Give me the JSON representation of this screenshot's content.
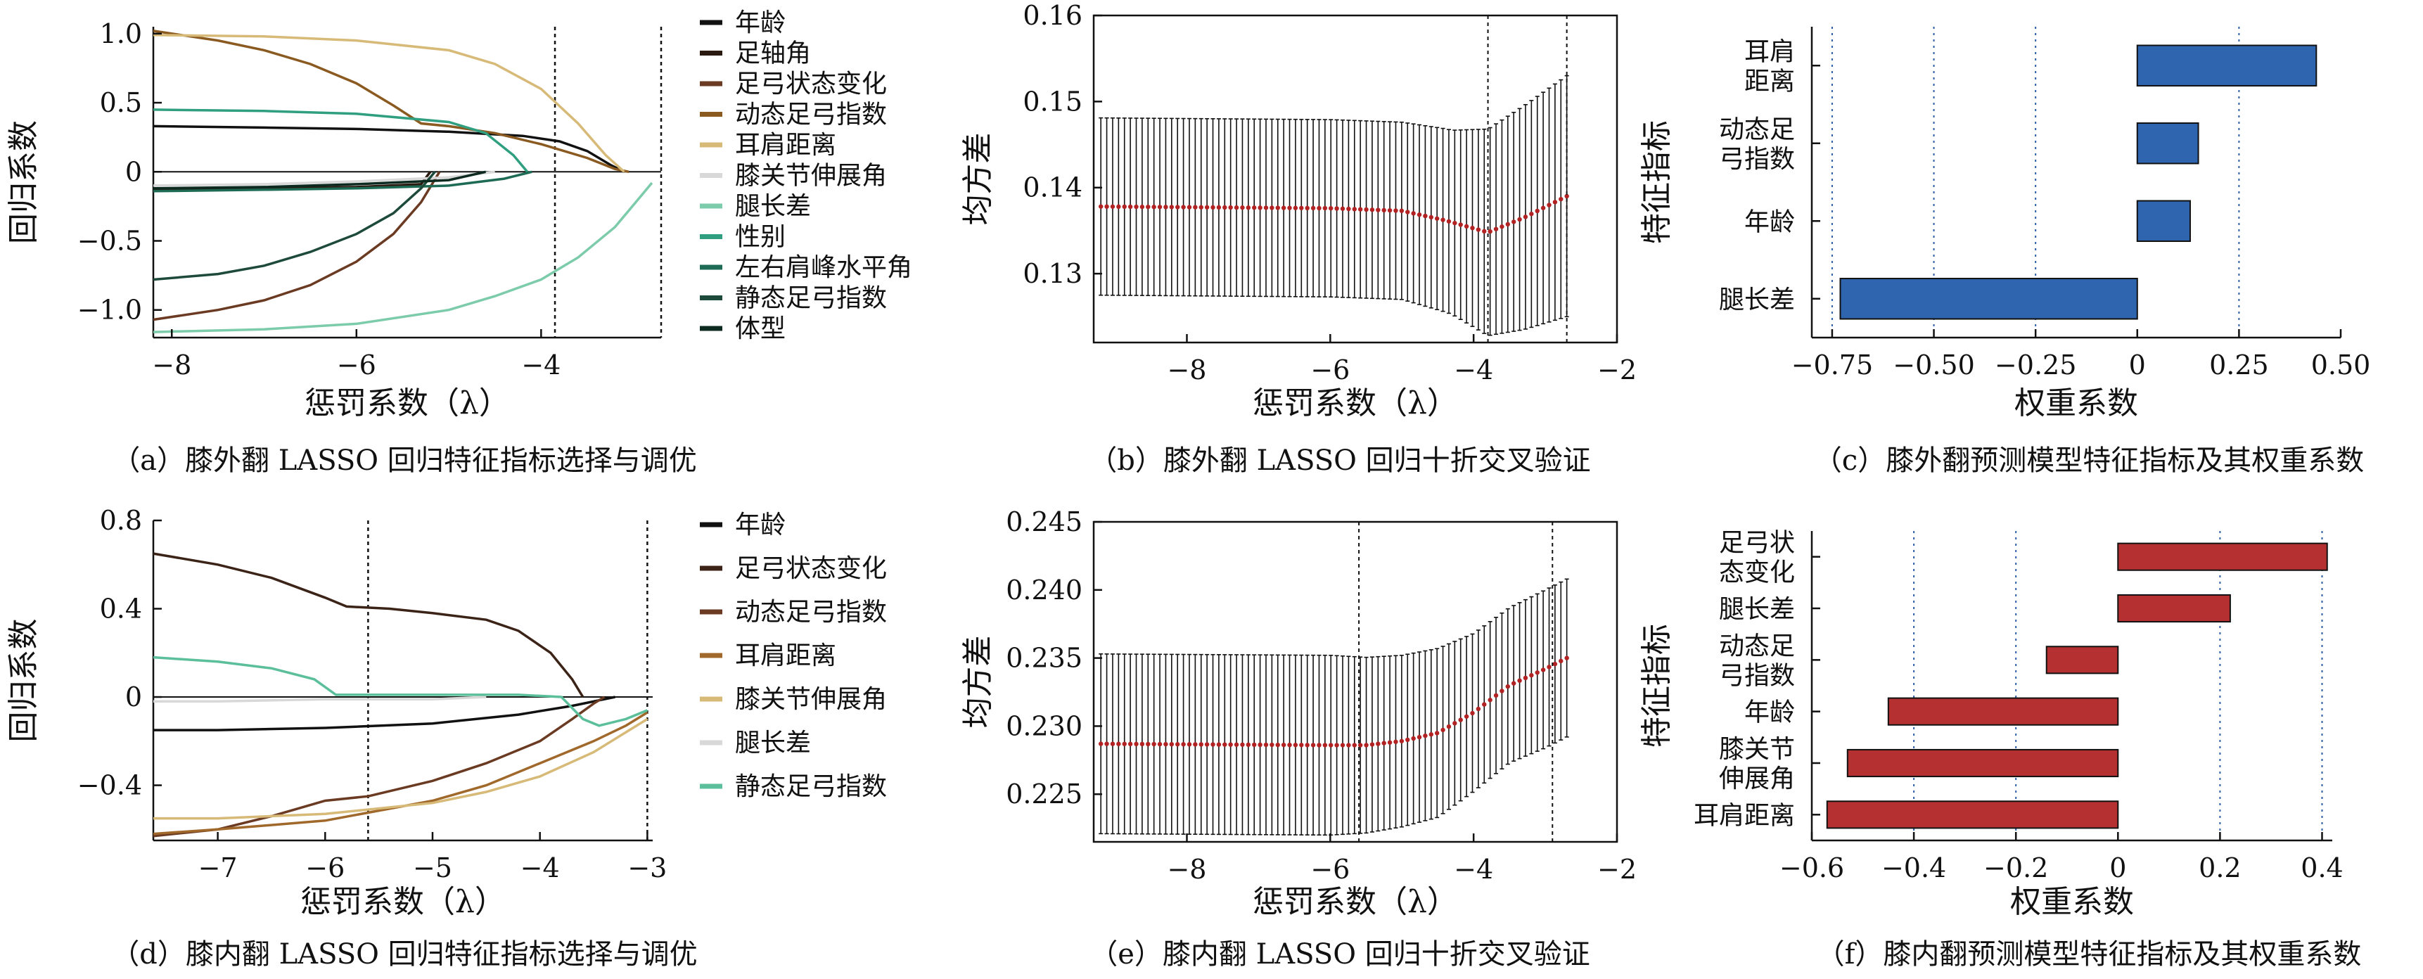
{
  "chart_data": [
    {
      "id": "a",
      "type": "line",
      "caption": "（a）膝外翻 LASSO 回归特征指标选择与调优",
      "xlabel": "惩罚系数（λ）",
      "ylabel": "回归系数",
      "xlim": [
        -8.2,
        -2.7
      ],
      "ylim": [
        -1.2,
        1.05
      ],
      "xticks": [
        -8,
        -6,
        -4
      ],
      "xtick_labels": [
        "−8",
        "−6",
        "−4"
      ],
      "yticks": [
        1.0,
        0.5,
        0,
        -0.5,
        -1.0
      ],
      "ytick_labels": [
        "1.0",
        "0.5",
        "0",
        "−0.5",
        "−1.0"
      ],
      "vlines": [
        -3.85,
        -2.7
      ],
      "series": [
        {
          "name": "年龄",
          "color": "#111111",
          "points": [
            [
              -8.2,
              0.33
            ],
            [
              -7,
              0.32
            ],
            [
              -6,
              0.31
            ],
            [
              -5,
              0.29
            ],
            [
              -4.2,
              0.26
            ],
            [
              -3.8,
              0.22
            ],
            [
              -3.5,
              0.15
            ],
            [
              -3.25,
              0.05
            ],
            [
              -3.1,
              0
            ]
          ]
        },
        {
          "name": "足轴角",
          "color": "#2b1a10",
          "points": [
            [
              -8.2,
              -0.13
            ],
            [
              -7,
              -0.12
            ],
            [
              -6,
              -0.11
            ],
            [
              -5.3,
              -0.09
            ],
            [
              -5.2,
              0
            ]
          ]
        },
        {
          "name": "足弓状态变化",
          "color": "#6b3a22",
          "points": [
            [
              -8.2,
              -1.07
            ],
            [
              -7.5,
              -1.0
            ],
            [
              -7,
              -0.93
            ],
            [
              -6.5,
              -0.82
            ],
            [
              -6,
              -0.65
            ],
            [
              -5.6,
              -0.45
            ],
            [
              -5.3,
              -0.22
            ],
            [
              -5.1,
              0
            ]
          ]
        },
        {
          "name": "动态足弓指数",
          "color": "#8a5a20",
          "points": [
            [
              -8.2,
              1.02
            ],
            [
              -7.5,
              0.95
            ],
            [
              -7,
              0.88
            ],
            [
              -6.5,
              0.78
            ],
            [
              -6,
              0.64
            ],
            [
              -5.6,
              0.48
            ],
            [
              -5.3,
              0.35
            ],
            [
              -5,
              0.33
            ],
            [
              -4.5,
              0.28
            ],
            [
              -4,
              0.2
            ],
            [
              -3.5,
              0.1
            ],
            [
              -3.2,
              0.02
            ],
            [
              -3.05,
              0
            ]
          ]
        },
        {
          "name": "耳肩距离",
          "color": "#d7ba78",
          "points": [
            [
              -8.2,
              0.99
            ],
            [
              -7,
              0.98
            ],
            [
              -6,
              0.95
            ],
            [
              -5,
              0.88
            ],
            [
              -4.5,
              0.78
            ],
            [
              -4,
              0.6
            ],
            [
              -3.6,
              0.35
            ],
            [
              -3.3,
              0.12
            ],
            [
              -3.1,
              0
            ]
          ]
        },
        {
          "name": "膝关节伸展角",
          "color": "#d8d8d8",
          "points": [
            [
              -8.2,
              -0.1
            ],
            [
              -7,
              -0.09
            ],
            [
              -6,
              -0.07
            ],
            [
              -5,
              -0.04
            ],
            [
              -4.5,
              0
            ]
          ]
        },
        {
          "name": "腿长差",
          "color": "#7ccbaa",
          "points": [
            [
              -8.2,
              -1.16
            ],
            [
              -7,
              -1.14
            ],
            [
              -6,
              -1.1
            ],
            [
              -5,
              -1.0
            ],
            [
              -4.5,
              -0.9
            ],
            [
              -4,
              -0.78
            ],
            [
              -3.6,
              -0.62
            ],
            [
              -3.2,
              -0.4
            ],
            [
              -2.95,
              -0.2
            ],
            [
              -2.8,
              -0.08
            ]
          ]
        },
        {
          "name": "性别",
          "color": "#2f9f80",
          "points": [
            [
              -8.2,
              0.45
            ],
            [
              -7,
              0.44
            ],
            [
              -6,
              0.42
            ],
            [
              -5,
              0.36
            ],
            [
              -4.6,
              0.28
            ],
            [
              -4.3,
              0.12
            ],
            [
              -4.15,
              0
            ]
          ]
        },
        {
          "name": "左右肩峰水平角",
          "color": "#1e6b55",
          "points": [
            [
              -8.2,
              -0.14
            ],
            [
              -7,
              -0.13
            ],
            [
              -6,
              -0.12
            ],
            [
              -5,
              -0.1
            ],
            [
              -4.4,
              -0.05
            ],
            [
              -4.1,
              0
            ]
          ]
        },
        {
          "name": "静态足弓指数",
          "color": "#1d4a3a",
          "points": [
            [
              -8.2,
              -0.78
            ],
            [
              -7.5,
              -0.74
            ],
            [
              -7,
              -0.68
            ],
            [
              -6.5,
              -0.58
            ],
            [
              -6,
              -0.45
            ],
            [
              -5.6,
              -0.3
            ],
            [
              -5.3,
              -0.12
            ],
            [
              -5.15,
              0
            ]
          ]
        },
        {
          "name": "体型",
          "color": "#0d2a20",
          "points": [
            [
              -8.2,
              -0.12
            ],
            [
              -7,
              -0.11
            ],
            [
              -6,
              -0.09
            ],
            [
              -5,
              -0.06
            ],
            [
              -4.6,
              0
            ]
          ]
        }
      ]
    },
    {
      "id": "b",
      "type": "scatter",
      "caption": "（b）膝外翻 LASSO 回归十折交叉验证",
      "xlabel": "惩罚系数（λ）",
      "ylabel": "均方差",
      "xlim": [
        -9.3,
        -2.0
      ],
      "ylim": [
        0.122,
        0.16
      ],
      "xticks": [
        -8,
        -6,
        -4,
        -2
      ],
      "xtick_labels": [
        "−8",
        "−6",
        "−4",
        "−2"
      ],
      "yticks": [
        0.13,
        0.14,
        0.15,
        0.16
      ],
      "ytick_labels": [
        "0.13",
        "0.14",
        "0.15",
        "0.16"
      ],
      "vlines": [
        -3.8,
        -2.7
      ],
      "lambda_range": [
        -9.2,
        -2.7
      ],
      "n_points": 80,
      "mean_curve": [
        [
          -9.2,
          0.1378
        ],
        [
          -6,
          0.1376
        ],
        [
          -5,
          0.1373
        ],
        [
          -4.4,
          0.1362
        ],
        [
          -3.8,
          0.1348
        ],
        [
          -3.3,
          0.1365
        ],
        [
          -2.7,
          0.139
        ]
      ],
      "halfwidth_curve": [
        [
          -9.2,
          0.0103
        ],
        [
          -6,
          0.0103
        ],
        [
          -5,
          0.0103
        ],
        [
          -4.3,
          0.0107
        ],
        [
          -3.8,
          0.012
        ],
        [
          -3.3,
          0.013
        ],
        [
          -2.7,
          0.014
        ]
      ],
      "point_color": "#b22222"
    },
    {
      "id": "c",
      "type": "bar",
      "orientation": "horizontal",
      "caption": "（c）膝外翻预测模型特征指标及其权重系数",
      "xlabel": "权重系数",
      "ylabel": "特征指标",
      "xlim": [
        -0.8,
        0.5
      ],
      "xticks": [
        -0.75,
        -0.5,
        -0.25,
        0,
        0.25,
        0.5
      ],
      "xtick_labels": [
        "−0.75",
        "−0.50",
        "−0.25",
        "0",
        "0.25",
        "0.50"
      ],
      "grid_x": [
        -0.75,
        -0.5,
        -0.25,
        0.25
      ],
      "categories": [
        [
          "耳肩",
          "距离"
        ],
        [
          "动态足",
          "弓指数"
        ],
        [
          "年龄"
        ],
        [
          "腿长差"
        ]
      ],
      "values": [
        0.44,
        0.15,
        0.13,
        -0.73
      ],
      "bar_color": "#2f64ae"
    },
    {
      "id": "d",
      "type": "line",
      "caption": "（d）膝内翻 LASSO 回归特征指标选择与调优",
      "xlabel": "惩罚系数（λ）",
      "ylabel": "回归系数",
      "xlim": [
        -7.6,
        -2.95
      ],
      "ylim": [
        -0.65,
        0.8
      ],
      "xticks": [
        -7,
        -6,
        -5,
        -4,
        -3
      ],
      "xtick_labels": [
        "−7",
        "−6",
        "−5",
        "−4",
        "−3"
      ],
      "yticks": [
        0.8,
        0.4,
        0,
        -0.4
      ],
      "ytick_labels": [
        "0.8",
        "0.4",
        "0",
        "−0.4"
      ],
      "vlines": [
        -5.6,
        -3.0
      ],
      "series": [
        {
          "name": "年龄",
          "color": "#111111",
          "points": [
            [
              -7.6,
              -0.15
            ],
            [
              -7,
              -0.15
            ],
            [
              -6,
              -0.14
            ],
            [
              -5,
              -0.12
            ],
            [
              -4.2,
              -0.08
            ],
            [
              -3.7,
              -0.04
            ],
            [
              -3.4,
              -0.01
            ],
            [
              -3.3,
              0
            ]
          ]
        },
        {
          "name": "足弓状态变化",
          "color": "#3b2417",
          "points": [
            [
              -7.6,
              0.65
            ],
            [
              -7,
              0.6
            ],
            [
              -6.5,
              0.54
            ],
            [
              -6,
              0.45
            ],
            [
              -5.8,
              0.41
            ],
            [
              -5.4,
              0.4
            ],
            [
              -5,
              0.38
            ],
            [
              -4.5,
              0.35
            ],
            [
              -4.2,
              0.3
            ],
            [
              -3.9,
              0.2
            ],
            [
              -3.7,
              0.08
            ],
            [
              -3.6,
              0
            ]
          ]
        },
        {
          "name": "动态足弓指数",
          "color": "#6b3a22",
          "points": [
            [
              -7.6,
              -0.63
            ],
            [
              -7,
              -0.6
            ],
            [
              -6.5,
              -0.54
            ],
            [
              -6,
              -0.47
            ],
            [
              -5.6,
              -0.45
            ],
            [
              -5,
              -0.38
            ],
            [
              -4.5,
              -0.3
            ],
            [
              -4,
              -0.2
            ],
            [
              -3.7,
              -0.1
            ],
            [
              -3.5,
              -0.03
            ],
            [
              -3.4,
              0
            ]
          ]
        },
        {
          "name": "耳肩距离",
          "color": "#a0682a",
          "points": [
            [
              -7.6,
              -0.62
            ],
            [
              -7,
              -0.6
            ],
            [
              -6,
              -0.56
            ],
            [
              -5,
              -0.47
            ],
            [
              -4.5,
              -0.4
            ],
            [
              -4,
              -0.3
            ],
            [
              -3.5,
              -0.2
            ],
            [
              -3.2,
              -0.13
            ],
            [
              -3.0,
              -0.07
            ]
          ]
        },
        {
          "name": "膝关节伸展角",
          "color": "#d7ba78",
          "points": [
            [
              -7.6,
              -0.55
            ],
            [
              -7,
              -0.55
            ],
            [
              -6,
              -0.53
            ],
            [
              -5,
              -0.48
            ],
            [
              -4.5,
              -0.43
            ],
            [
              -4,
              -0.36
            ],
            [
              -3.5,
              -0.25
            ],
            [
              -3.2,
              -0.16
            ],
            [
              -3.0,
              -0.1
            ]
          ]
        },
        {
          "name": "腿长差",
          "color": "#d8d8d8",
          "points": [
            [
              -7.6,
              -0.02
            ],
            [
              -7,
              -0.02
            ],
            [
              -6,
              -0.01
            ],
            [
              -5,
              -0.01
            ],
            [
              -4.5,
              0
            ]
          ]
        },
        {
          "name": "静态足弓指数",
          "color": "#5bbf9b",
          "points": [
            [
              -7.6,
              0.18
            ],
            [
              -7,
              0.16
            ],
            [
              -6.5,
              0.13
            ],
            [
              -6.1,
              0.08
            ],
            [
              -5.9,
              0.01
            ],
            [
              -5.5,
              0.01
            ],
            [
              -4.2,
              0.01
            ],
            [
              -3.8,
              0
            ],
            [
              -3.6,
              -0.1
            ],
            [
              -3.45,
              -0.13
            ],
            [
              -3.2,
              -0.1
            ],
            [
              -3.0,
              -0.06
            ]
          ]
        }
      ]
    },
    {
      "id": "e",
      "type": "scatter",
      "caption": "（e）膝内翻 LASSO 回归十折交叉验证",
      "xlabel": "惩罚系数（λ）",
      "ylabel": "均方差",
      "xlim": [
        -9.3,
        -2.0
      ],
      "ylim": [
        0.2215,
        0.245
      ],
      "xticks": [
        -8,
        -6,
        -4,
        -2
      ],
      "xtick_labels": [
        "−8",
        "−6",
        "−4",
        "−2"
      ],
      "yticks": [
        0.225,
        0.23,
        0.235,
        0.24,
        0.245
      ],
      "ytick_labels": [
        "0.225",
        "0.230",
        "0.235",
        "0.240",
        "0.245"
      ],
      "vlines": [
        -5.6,
        -2.9
      ],
      "lambda_range": [
        -9.2,
        -2.7
      ],
      "n_points": 80,
      "mean_curve": [
        [
          -9.2,
          0.2287
        ],
        [
          -6,
          0.2286
        ],
        [
          -5.5,
          0.2286
        ],
        [
          -5,
          0.2289
        ],
        [
          -4.5,
          0.2295
        ],
        [
          -4,
          0.231
        ],
        [
          -3.5,
          0.233
        ],
        [
          -3,
          0.2342
        ],
        [
          -2.7,
          0.235
        ]
      ],
      "halfwidth_curve": [
        [
          -9.2,
          0.0066
        ],
        [
          -6,
          0.0066
        ],
        [
          -5,
          0.0063
        ],
        [
          -4.5,
          0.0062
        ],
        [
          -4,
          0.0058
        ],
        [
          -3.5,
          0.0057
        ],
        [
          -3,
          0.0058
        ],
        [
          -2.7,
          0.0058
        ]
      ],
      "point_color": "#b22222"
    },
    {
      "id": "f",
      "type": "bar",
      "orientation": "horizontal",
      "caption": "（f）膝内翻预测模型特征指标及其权重系数",
      "xlabel": "权重系数",
      "ylabel": "特征指标",
      "xlim": [
        -0.6,
        0.42
      ],
      "xticks": [
        -0.6,
        -0.4,
        -0.2,
        0,
        0.2,
        0.4
      ],
      "xtick_labels": [
        "−0.6",
        "−0.4",
        "−0.2",
        "0",
        "0.2",
        "0.4"
      ],
      "grid_x": [
        -0.4,
        -0.2,
        0.2,
        0.4
      ],
      "categories": [
        [
          "足弓状",
          "态变化"
        ],
        [
          "腿长差"
        ],
        [
          "动态足",
          "弓指数"
        ],
        [
          "年龄"
        ],
        [
          "膝关节",
          "伸展角"
        ],
        [
          "耳肩距离"
        ]
      ],
      "values": [
        0.41,
        0.22,
        -0.14,
        -0.45,
        -0.53,
        -0.57
      ],
      "bar_color": "#b53131"
    }
  ]
}
